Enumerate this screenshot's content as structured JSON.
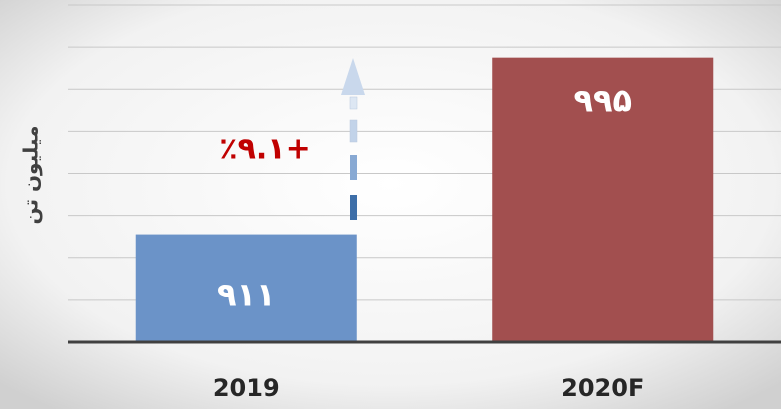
{
  "chart_data": {
    "type": "bar",
    "categories": [
      "2019",
      "2020F"
    ],
    "values": [
      911,
      995
    ],
    "value_labels": [
      "۹۱۱",
      "۹۹۵"
    ],
    "colors": [
      "#6b93c8",
      "#a24f4f"
    ],
    "ylabel": "میلیون تن",
    "annotation": "+٪۹.۱",
    "ylim": [
      860,
      1020
    ],
    "yticks": [
      860,
      880,
      900,
      920,
      940,
      960,
      980,
      1000,
      1020
    ],
    "grid": true
  }
}
